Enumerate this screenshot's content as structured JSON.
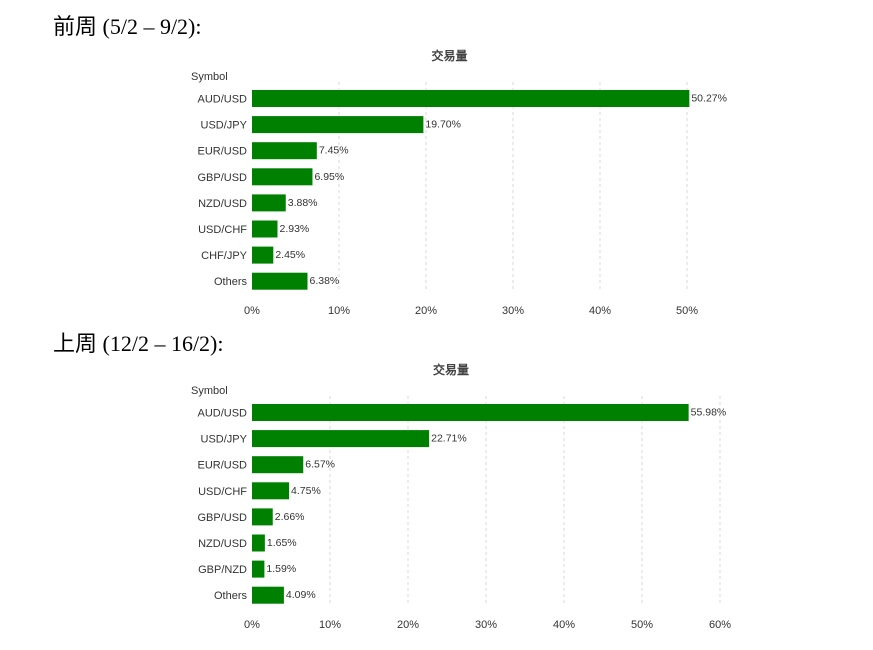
{
  "headings": [
    "前周 (5/2 – 9/2):",
    "上周 (12/2 – 16/2):"
  ],
  "chart_data": [
    {
      "type": "bar",
      "orientation": "horizontal",
      "title": "交易量",
      "ylabel": "Symbol",
      "categories": [
        "AUD/USD",
        "USD/JPY",
        "EUR/USD",
        "GBP/USD",
        "NZD/USD",
        "USD/CHF",
        "CHF/JPY",
        "Others"
      ],
      "values": [
        50.27,
        19.7,
        7.45,
        6.95,
        3.88,
        2.93,
        2.45,
        6.38
      ],
      "value_labels": [
        "50.27%",
        "19.70%",
        "7.45%",
        "6.95%",
        "3.88%",
        "2.93%",
        "2.45%",
        "6.38%"
      ],
      "xticks": [
        "0%",
        "10%",
        "20%",
        "30%",
        "40%",
        "50%"
      ],
      "xlim": [
        0,
        50
      ],
      "bar_color": "#008000",
      "grid": "vertical dashed",
      "legend": "none"
    },
    {
      "type": "bar",
      "orientation": "horizontal",
      "title": "交易量",
      "ylabel": "Symbol",
      "categories": [
        "AUD/USD",
        "USD/JPY",
        "EUR/USD",
        "USD/CHF",
        "GBP/USD",
        "NZD/USD",
        "GBP/NZD",
        "Others"
      ],
      "values": [
        55.98,
        22.71,
        6.57,
        4.75,
        2.66,
        1.65,
        1.59,
        4.09
      ],
      "value_labels": [
        "55.98%",
        "22.71%",
        "6.57%",
        "4.75%",
        "2.66%",
        "1.65%",
        "1.59%",
        "4.09%"
      ],
      "xticks": [
        "0%",
        "10%",
        "20%",
        "30%",
        "40%",
        "50%",
        "60%"
      ],
      "xlim": [
        0,
        60
      ],
      "bar_color": "#008000",
      "grid": "vertical dashed",
      "legend": "none"
    }
  ]
}
